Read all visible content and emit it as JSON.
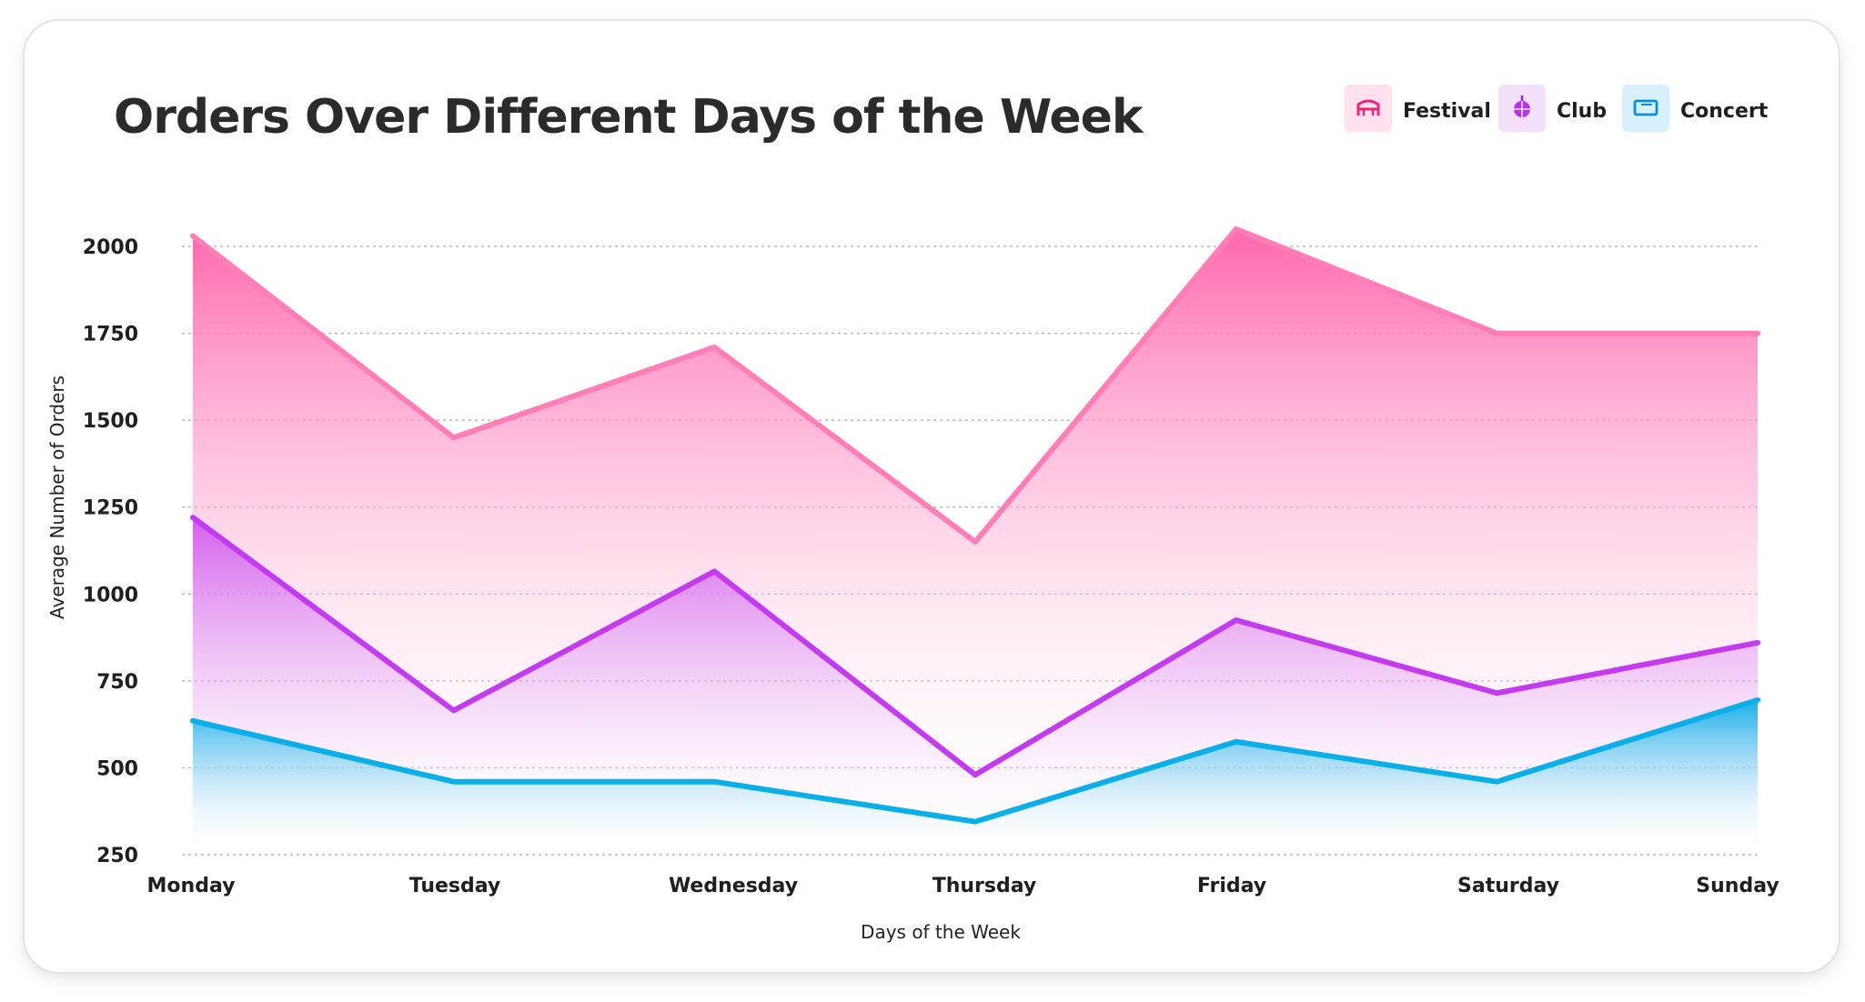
{
  "chart_data": {
    "type": "area",
    "title": "Orders Over Different Days of the Week",
    "xlabel": "Days of the Week",
    "ylabel": "Average Number of Orders",
    "categories": [
      "Monday",
      "Tuesday",
      "Wednesday",
      "Thursday",
      "Friday",
      "Saturday",
      "Sunday"
    ],
    "yticks": [
      "250",
      "500",
      "750",
      "1000",
      "1250",
      "1500",
      "1750",
      "2000"
    ],
    "ylim": [
      250,
      2000
    ],
    "grid": true,
    "legend_position": "top-right",
    "series": [
      {
        "name": "Festival",
        "values": [
          2030,
          1450,
          1710,
          1150,
          2050,
          1750,
          1750
        ],
        "color": "#ff7eb8",
        "icon": "stage-icon"
      },
      {
        "name": "Club",
        "values": [
          1220,
          665,
          1065,
          480,
          925,
          715,
          860
        ],
        "color": "#c43af0",
        "icon": "disco-ball-icon"
      },
      {
        "name": "Concert",
        "values": [
          635,
          460,
          460,
          345,
          575,
          460,
          695
        ],
        "color": "#0aaee8",
        "icon": "ticket-icon"
      }
    ]
  }
}
